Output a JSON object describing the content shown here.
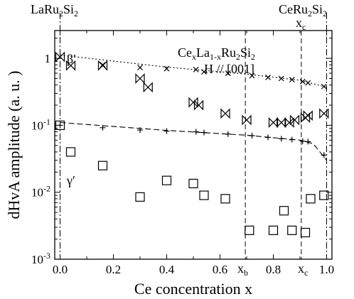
{
  "chart_data": {
    "type": "scatter",
    "title": "",
    "xlabel": "Ce concentration x",
    "ylabel": "dHvA  amplitude  (a. u. )",
    "xlim": [
      -0.02,
      1.02
    ],
    "ylim": [
      0.001,
      2.6
    ],
    "y_scale": "log",
    "grid": false,
    "x_ticks": [
      {
        "value": 0.0,
        "label": "0.0"
      },
      {
        "value": 0.2,
        "label": "0.2"
      },
      {
        "value": 0.4,
        "label": "0.4"
      },
      {
        "value": 0.6,
        "label": "0.6"
      },
      {
        "value": 0.8,
        "label": "0.8"
      },
      {
        "value": 1.0,
        "label": "1.0"
      }
    ],
    "y_ticks": [
      {
        "value": 1,
        "label": "1"
      },
      {
        "value": 0.1,
        "label": "10",
        "exp": "-1"
      },
      {
        "value": 0.01,
        "label": "10",
        "exp": "-2"
      },
      {
        "value": 0.001,
        "label": "10",
        "exp": "-3"
      }
    ],
    "annotations": {
      "compound_main": "Ce",
      "compound_sub1": "x",
      "compound_mid": "La",
      "compound_sub2": "1-x",
      "compound_mid2": "Ru",
      "compound_sub3": "2",
      "compound_mid3": "Si",
      "compound_sub4": "2",
      "field": "H // [001]",
      "beta_label": "β′",
      "gamma_label": "γ′",
      "left_end_main": "LaRu",
      "left_end_sub1": "2",
      "left_end_mid": "Si",
      "left_end_sub2": "2",
      "right_end_main": "CeRu",
      "right_end_sub1": "2",
      "right_end_mid": "Si",
      "right_end_sub2": "2",
      "xc_top_main": "x",
      "xc_top_sub": "c",
      "xb_main": "x",
      "xb_sub": "b",
      "xc_bottom_main": "x",
      "xc_bottom_sub": "c"
    },
    "vertical_lines": [
      {
        "name": "LaRu2Si2",
        "x": 0.0,
        "style": "dash-dot"
      },
      {
        "name": "xb",
        "x": 0.695,
        "style": "dashed"
      },
      {
        "name": "xc",
        "x": 0.905,
        "style": "dashed"
      },
      {
        "name": "CeRu2Si2",
        "x": 1.0,
        "style": "dash-dot"
      }
    ],
    "series": [
      {
        "marker": "bowtie",
        "points": [
          [
            0.0,
            1.05
          ],
          [
            0.04,
            0.78
          ],
          [
            0.16,
            0.78
          ],
          [
            0.3,
            0.5
          ],
          [
            0.33,
            0.37
          ],
          [
            0.5,
            0.22
          ],
          [
            0.52,
            0.2
          ],
          [
            0.62,
            0.15
          ],
          [
            0.7,
            0.12
          ],
          [
            0.8,
            0.11
          ],
          [
            0.83,
            0.11
          ],
          [
            0.86,
            0.11
          ],
          [
            0.88,
            0.12
          ],
          [
            0.92,
            0.13
          ],
          [
            0.93,
            0.14
          ],
          [
            0.99,
            0.15
          ]
        ]
      },
      {
        "marker": "cross",
        "points": [
          [
            0.0,
            1.05
          ],
          [
            0.16,
            0.8
          ],
          [
            0.3,
            0.73
          ],
          [
            0.4,
            0.7
          ],
          [
            0.51,
            0.68
          ],
          [
            0.54,
            0.63
          ],
          [
            0.63,
            0.6
          ],
          [
            0.72,
            0.55
          ],
          [
            0.78,
            0.52
          ],
          [
            0.83,
            0.5
          ],
          [
            0.87,
            0.48
          ],
          [
            0.91,
            0.45
          ],
          [
            0.93,
            0.43
          ],
          [
            0.99,
            0.38
          ]
        ]
      },
      {
        "marker": "plus",
        "points": [
          [
            0.0,
            0.1
          ],
          [
            0.16,
            0.092
          ],
          [
            0.3,
            0.085
          ],
          [
            0.4,
            0.082
          ],
          [
            0.51,
            0.08
          ],
          [
            0.54,
            0.078
          ],
          [
            0.63,
            0.074
          ],
          [
            0.72,
            0.07
          ],
          [
            0.78,
            0.066
          ],
          [
            0.83,
            0.063
          ],
          [
            0.87,
            0.061
          ],
          [
            0.91,
            0.058
          ],
          [
            0.93,
            0.057
          ],
          [
            0.99,
            0.036
          ]
        ]
      },
      {
        "marker": "square",
        "points": [
          [
            0.0,
            0.1
          ],
          [
            0.04,
            0.04
          ],
          [
            0.16,
            0.025
          ],
          [
            0.3,
            0.0085
          ],
          [
            0.4,
            0.015
          ],
          [
            0.5,
            0.0135
          ],
          [
            0.54,
            0.009
          ],
          [
            0.62,
            0.008
          ],
          [
            0.71,
            0.0027
          ],
          [
            0.8,
            0.0027
          ],
          [
            0.84,
            0.0053
          ],
          [
            0.87,
            0.0027
          ],
          [
            0.92,
            0.0025
          ],
          [
            0.94,
            0.008
          ],
          [
            0.99,
            0.009
          ]
        ]
      }
    ],
    "fit_lines": [
      {
        "name": "beta-fit",
        "style": "dotted",
        "points": [
          [
            0.0,
            1.12
          ],
          [
            0.4,
            0.74
          ],
          [
            0.7,
            0.58
          ],
          [
            0.9,
            0.47
          ],
          [
            1.0,
            0.37
          ]
        ]
      },
      {
        "name": "gamma-fit",
        "style": "dashed",
        "points": [
          [
            0.0,
            0.11
          ],
          [
            0.4,
            0.084
          ],
          [
            0.7,
            0.071
          ],
          [
            0.9,
            0.06
          ],
          [
            0.95,
            0.053
          ],
          [
            1.0,
            0.03
          ]
        ]
      }
    ]
  }
}
